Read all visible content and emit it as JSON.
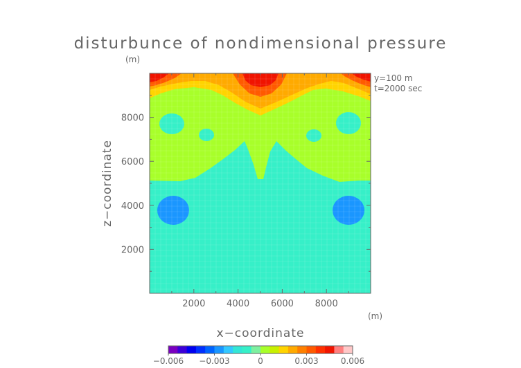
{
  "chart_data": {
    "type": "heatmap",
    "title": "disturbunce of nondimensional pressure",
    "xlabel": "x−coordinate",
    "ylabel": "z−coordinate",
    "x_unit": "(m)",
    "z_unit": "(m)",
    "annotations": [
      "y=100  m",
      "t=2000 sec"
    ],
    "xlim": [
      0,
      10000
    ],
    "ylim": [
      0,
      10000
    ],
    "x_ticks": [
      2000,
      4000,
      6000,
      8000
    ],
    "y_ticks": [
      2000,
      4000,
      6000,
      8000
    ],
    "colorbar": {
      "range": [
        -0.006,
        0.006
      ],
      "tick_values": [
        -0.006,
        -0.003,
        0,
        0.003,
        0.006
      ],
      "tick_labels": [
        "−0.006",
        "−0.003",
        "0",
        "0.003",
        "0.006"
      ],
      "colors": [
        "#7a00c0",
        "#3d00d8",
        "#0000f0",
        "#0030ff",
        "#0064ff",
        "#1a96ff",
        "#33c8ff",
        "#33e6d6",
        "#36f0c8",
        "#7df0a0",
        "#a8ff2a",
        "#c8f000",
        "#ffd400",
        "#ffaa00",
        "#ff8000",
        "#ff5a00",
        "#ff3000",
        "#f01400",
        "#ff8080",
        "#ffc8c8"
      ]
    },
    "levels": [
      {
        "name": "below -0.0003",
        "color": "#1a96ff"
      },
      {
        "name": "-0.0003 to 0",
        "color": "#36f0c8"
      },
      {
        "name": "0 to 0.0006",
        "color": "#a8ff2a"
      },
      {
        "name": "0.0006 to 0.0012",
        "color": "#ffd400"
      },
      {
        "name": "0.0012 to 0.0018",
        "color": "#ffaa00"
      },
      {
        "name": "0.0018 to 0.0024",
        "color": "#ff5a00"
      },
      {
        "name": "above 0.0024",
        "color": "#f01400"
      }
    ],
    "grid": false
  }
}
